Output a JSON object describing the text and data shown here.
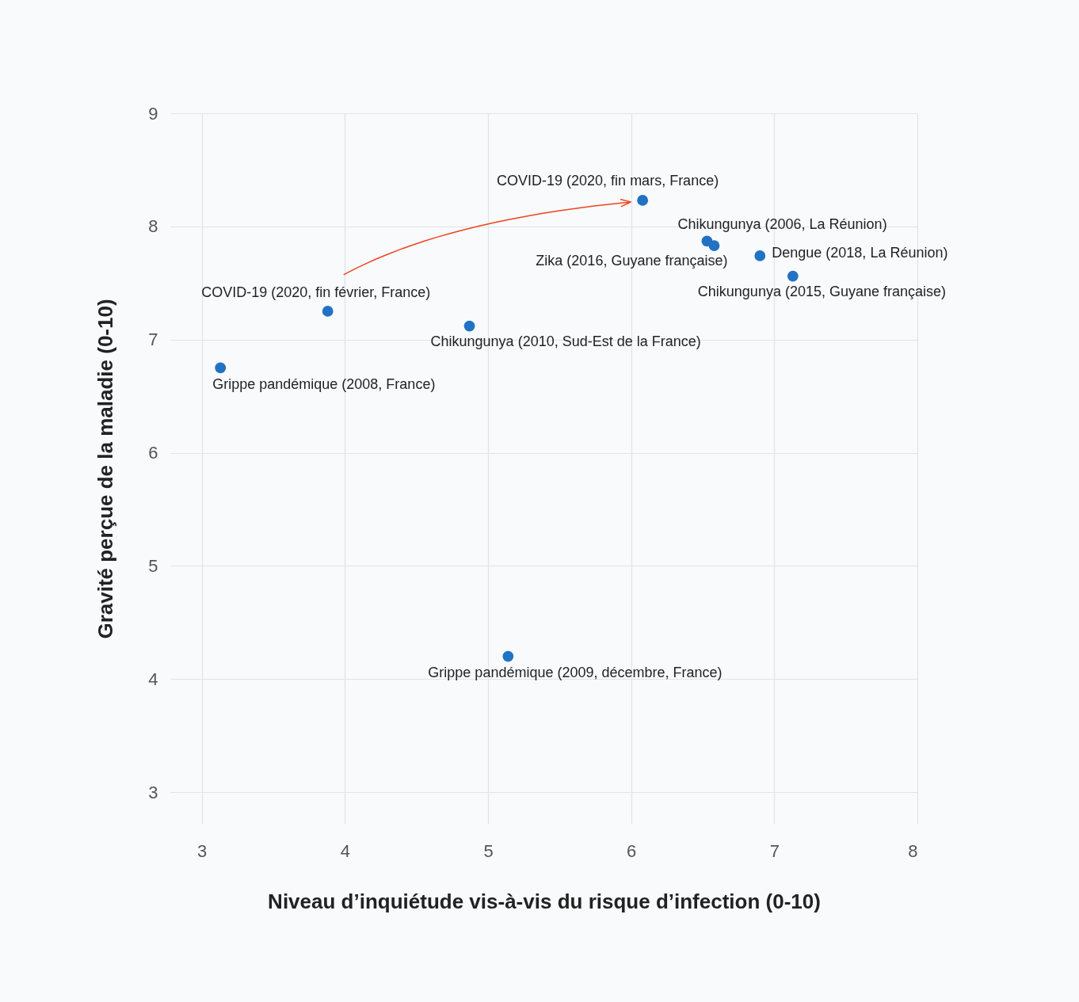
{
  "chart_data": {
    "type": "scatter",
    "xlabel": "Niveau d’inquiétude vis-à-vis du risque d’infection (0-10)",
    "ylabel": "Gravité perçue de la maladie (0-10)",
    "x": [
      3.13,
      3.88,
      4.87,
      5.14,
      6.08,
      6.53,
      6.58,
      6.9,
      7.13
    ],
    "series": [
      {
        "color": "#2272c3",
        "values": [
          6.75,
          7.25,
          7.12,
          4.2,
          8.23,
          7.87,
          7.83,
          7.74,
          7.56
        ]
      }
    ],
    "xlim": [
      2.78,
      8
    ],
    "ylim": [
      2.72,
      9
    ],
    "xticks": [
      3,
      4,
      5,
      6,
      7,
      8
    ],
    "yticks": [
      3,
      4,
      5,
      6,
      7,
      8,
      9
    ],
    "grid": true,
    "marker": "circle",
    "annotations": [
      {
        "text": "Grippe pandémique (2008, France)",
        "x": 3.13,
        "y": 6.75
      },
      {
        "text": "COVID-19 (2020, fin février, France)",
        "x": 3.88,
        "y": 7.25
      },
      {
        "text": "Chikungunya (2010, Sud-Est de la France)",
        "x": 4.87,
        "y": 7.12
      },
      {
        "text": "Grippe pandémique (2009, décembre, France)",
        "x": 5.14,
        "y": 4.2
      },
      {
        "text": "COVID-19 (2020, fin mars, France)",
        "x": 6.08,
        "y": 8.23
      },
      {
        "text": "Chikungunya (2006, La Réunion)",
        "x": 6.53,
        "y": 7.87
      },
      {
        "text": "Zika (2016, Guyane française)",
        "x": 6.58,
        "y": 7.83
      },
      {
        "text": "Dengue (2018, La Réunion)",
        "x": 6.9,
        "y": 7.74
      },
      {
        "text": "Chikungunya (2015, Guyane française)",
        "x": 7.13,
        "y": 7.56
      }
    ]
  }
}
